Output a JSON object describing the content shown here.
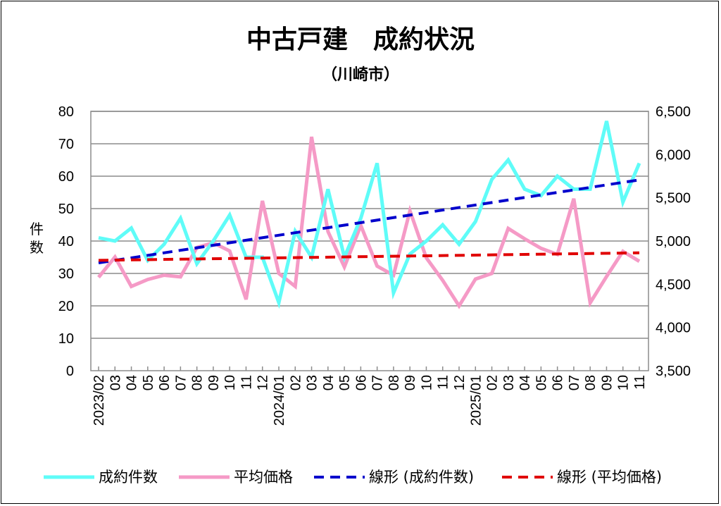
{
  "chart_data": {
    "type": "line",
    "title": "中古戸建　成約状況",
    "subtitle": "（川崎市）",
    "ylabel": "件数",
    "ylabel_right": "",
    "ylim": [
      0,
      80
    ],
    "yticks": [
      "0",
      "10",
      "20",
      "30",
      "40",
      "50",
      "60",
      "70",
      "80"
    ],
    "ylim_right": [
      3500,
      6500
    ],
    "yticks_right": [
      "3,500",
      "4,000",
      "4,500",
      "5,000",
      "5,500",
      "6,000",
      "6,500"
    ],
    "grid": true,
    "legend_position": "bottom",
    "categories": [
      "2023/02",
      "03",
      "04",
      "05",
      "06",
      "07",
      "08",
      "09",
      "10",
      "11",
      "12",
      "2024/01",
      "02",
      "03",
      "04",
      "05",
      "06",
      "07",
      "08",
      "09",
      "10",
      "11",
      "12",
      "2025/01",
      "02",
      "03",
      "04",
      "05",
      "06",
      "07",
      "08",
      "09",
      "10",
      "11"
    ],
    "series": [
      {
        "name": "成約件数",
        "axis": "left",
        "color": "#5ffcf8",
        "values": [
          41,
          40,
          44,
          34,
          39,
          47,
          33,
          40,
          48,
          35,
          35,
          21,
          43,
          35,
          56,
          35,
          47,
          64,
          24,
          36,
          40,
          45,
          39,
          46,
          59,
          65,
          56,
          54,
          60,
          56,
          56,
          77,
          52,
          64
        ]
      },
      {
        "name": "平均価格",
        "axis": "right",
        "color": "#f59ac6",
        "values": [
          4580,
          4815,
          4475,
          4555,
          4605,
          4585,
          4925,
          4980,
          4885,
          4325,
          5465,
          4625,
          4475,
          6205,
          5110,
          4700,
          5180,
          4710,
          4605,
          5350,
          4805,
          4545,
          4250,
          4560,
          4625,
          5145,
          5025,
          4915,
          4845,
          5490,
          4285,
          4590,
          4880,
          4765
        ]
      },
      {
        "name": "線形 (成約件数)",
        "type": "trend",
        "of": 0,
        "color": "#0000cc"
      },
      {
        "name": "線形 (平均価格)",
        "type": "trend",
        "of": 1,
        "color": "#e00000"
      }
    ]
  }
}
